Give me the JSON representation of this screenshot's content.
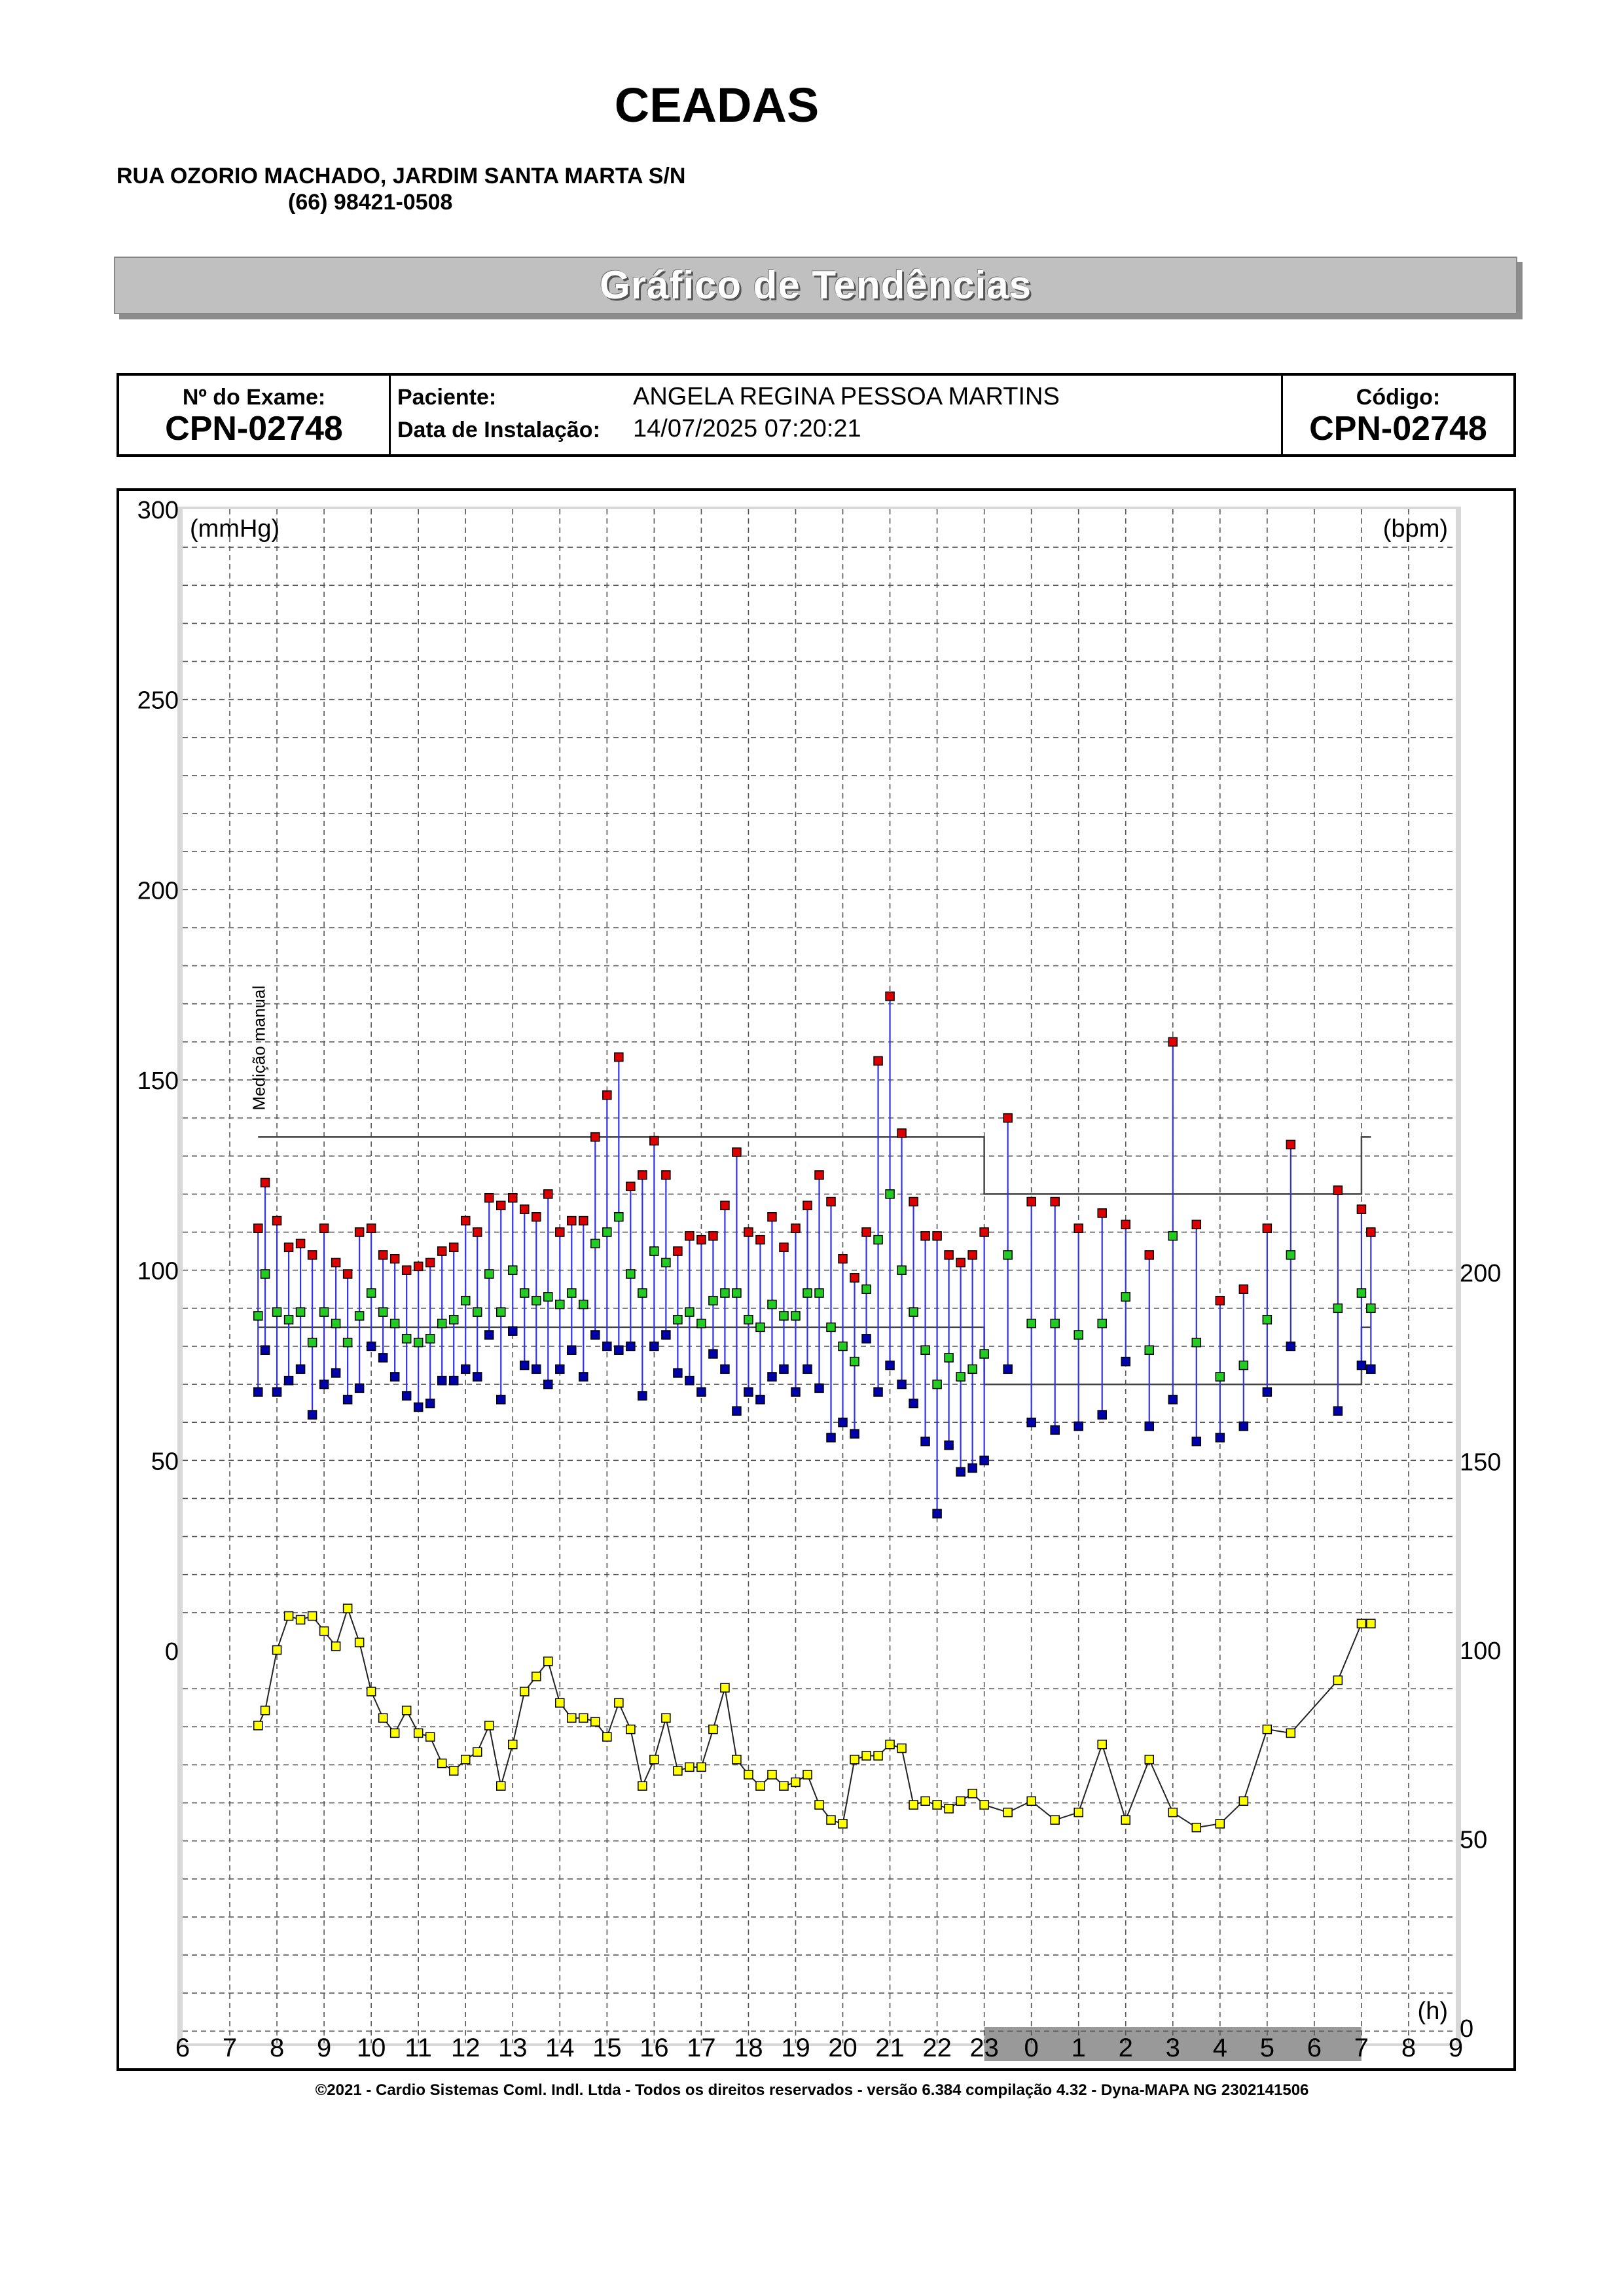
{
  "header": {
    "clinic_name": "CEADAS",
    "address": "RUA OZORIO MACHADO, JARDIM SANTA MARTA S/N",
    "phone": "(66) 98421-0508"
  },
  "report_title": "Gráfico de Tendências",
  "exam": {
    "exam_label": "Nº do Exame:",
    "exam_number": "CPN-02748",
    "patient_label": "Paciente:",
    "patient_name": "ANGELA REGINA PESSOA MARTINS",
    "install_label": "Data de Instalação:",
    "install_date": "14/07/2025 07:20:21",
    "code_label": "Código:",
    "code": "CPN-02748"
  },
  "footer": "©2021 - Cardio Sistemas Coml. Indl. Ltda - Todos os direitos reservados - versão 6.384 compilação 4.32 - Dyna-MAPA NG 2302141506",
  "chart_data": {
    "type": "scatter",
    "left_axis_label": "(mmHg)",
    "right_axis_label": "(bpm)",
    "x_axis_label": "(h)",
    "left_ticks": [
      0,
      50,
      100,
      150,
      200,
      250,
      300
    ],
    "right_ticks": [
      0,
      50,
      100,
      150,
      200
    ],
    "x_tick_labels": [
      "6",
      "7",
      "8",
      "9",
      "10",
      "11",
      "12",
      "13",
      "14",
      "15",
      "16",
      "17",
      "18",
      "19",
      "20",
      "21",
      "22",
      "23",
      "0",
      "1",
      "2",
      "3",
      "4",
      "5",
      "6",
      "7",
      "8",
      "9"
    ],
    "x_range_hours": [
      6,
      33
    ],
    "night_shade_hours": [
      23,
      31
    ],
    "annotation": "Medição manual",
    "annotation_time_h": 7.6,
    "colors": {
      "systolic": "#dd0000",
      "mean": "#22cc22",
      "diastolic": "#0000aa",
      "heart_rate": "#ffff00",
      "connector": "#3333dd",
      "limit_line": "#444444",
      "night_band": "#999999"
    },
    "limits": {
      "day_systolic": 135,
      "day_diastolic": 85,
      "night_systolic": 120,
      "night_diastolic": 70,
      "day_from_h": 7.6,
      "night_from_h": 23,
      "night_to_h": 31,
      "day2_to_h": 31.2
    },
    "bp_series": {
      "t": [
        7.6,
        7.75,
        8.0,
        8.25,
        8.5,
        8.75,
        9.0,
        9.25,
        9.5,
        9.75,
        10.0,
        10.25,
        10.5,
        10.75,
        11.0,
        11.25,
        11.5,
        11.75,
        12.0,
        12.25,
        12.5,
        12.75,
        13.0,
        13.25,
        13.5,
        13.75,
        14.0,
        14.25,
        14.5,
        14.75,
        15.0,
        15.25,
        15.5,
        15.75,
        16.0,
        16.25,
        16.5,
        16.75,
        17.0,
        17.25,
        17.5,
        17.75,
        18.0,
        18.25,
        18.5,
        18.75,
        19.0,
        19.25,
        19.5,
        19.75,
        20.0,
        20.25,
        20.5,
        20.75,
        21.0,
        21.25,
        21.5,
        21.75,
        22.0,
        22.25,
        22.5,
        22.75,
        23.0,
        23.5,
        24.0,
        24.5,
        25.0,
        25.5,
        26.0,
        26.5,
        27.0,
        27.5,
        28.0,
        28.5,
        29.0,
        29.5,
        30.5,
        31.0,
        31.2
      ],
      "systolic": [
        111,
        123,
        113,
        106,
        107,
        104,
        111,
        102,
        99,
        110,
        111,
        104,
        103,
        100,
        101,
        102,
        105,
        106,
        113,
        110,
        119,
        117,
        119,
        116,
        114,
        120,
        110,
        113,
        113,
        135,
        146,
        156,
        122,
        125,
        134,
        125,
        105,
        109,
        108,
        109,
        117,
        131,
        110,
        108,
        114,
        106,
        111,
        117,
        125,
        118,
        103,
        98,
        110,
        155,
        172,
        136,
        118,
        109,
        109,
        104,
        102,
        104,
        110,
        140,
        118,
        118,
        111,
        115,
        112,
        104,
        160,
        112,
        92,
        95,
        111,
        133,
        121,
        116,
        110
      ],
      "mean": [
        88,
        99,
        89,
        87,
        89,
        81,
        89,
        86,
        81,
        88,
        94,
        89,
        86,
        82,
        81,
        82,
        86,
        87,
        92,
        89,
        99,
        89,
        100,
        94,
        92,
        93,
        91,
        94,
        91,
        107,
        110,
        114,
        99,
        94,
        105,
        102,
        87,
        89,
        86,
        92,
        94,
        94,
        87,
        85,
        91,
        88,
        88,
        94,
        94,
        85,
        80,
        76,
        95,
        108,
        120,
        100,
        89,
        79,
        70,
        77,
        72,
        74,
        78,
        104,
        86,
        86,
        83,
        86,
        93,
        79,
        109,
        81,
        72,
        75,
        87,
        104,
        90,
        94,
        90
      ],
      "diastolic": [
        68,
        79,
        68,
        71,
        74,
        62,
        70,
        73,
        66,
        69,
        80,
        77,
        72,
        67,
        64,
        65,
        71,
        71,
        74,
        72,
        83,
        66,
        84,
        75,
        74,
        70,
        74,
        79,
        72,
        83,
        80,
        79,
        80,
        67,
        80,
        83,
        73,
        71,
        68,
        78,
        74,
        63,
        68,
        66,
        72,
        74,
        68,
        74,
        69,
        56,
        60,
        57,
        82,
        68,
        75,
        70,
        65,
        55,
        36,
        54,
        47,
        48,
        50,
        74,
        60,
        58,
        59,
        62,
        76,
        59,
        66,
        55,
        56,
        59,
        68,
        80,
        63,
        75,
        74
      ]
    },
    "heart_rate": {
      "t": [
        7.6,
        7.75,
        8.0,
        8.25,
        8.5,
        8.75,
        9.0,
        9.25,
        9.5,
        9.75,
        10.0,
        10.25,
        10.5,
        10.75,
        11.0,
        11.25,
        11.5,
        11.75,
        12.0,
        12.25,
        12.5,
        12.75,
        13.0,
        13.25,
        13.5,
        13.75,
        14.0,
        14.25,
        14.5,
        14.75,
        15.0,
        15.25,
        15.5,
        15.75,
        16.0,
        16.25,
        16.5,
        16.75,
        17.0,
        17.25,
        17.5,
        17.75,
        18.0,
        18.25,
        18.5,
        18.75,
        19.0,
        19.25,
        19.5,
        19.75,
        20.0,
        20.25,
        20.5,
        20.75,
        21.0,
        21.25,
        21.5,
        21.75,
        22.0,
        22.25,
        22.5,
        22.75,
        23.0,
        23.5,
        24.0,
        24.5,
        25.0,
        25.5,
        26.0,
        26.5,
        27.0,
        27.5,
        28.0,
        28.5,
        29.0,
        29.5,
        30.5,
        31.0,
        31.2
      ],
      "bpm": [
        80,
        84,
        100,
        109,
        108,
        109,
        105,
        101,
        111,
        102,
        89,
        82,
        78,
        84,
        78,
        77,
        70,
        68,
        71,
        73,
        80,
        64,
        75,
        89,
        93,
        97,
        86,
        82,
        82,
        81,
        77,
        86,
        79,
        64,
        71,
        82,
        68,
        69,
        69,
        79,
        90,
        71,
        67,
        64,
        67,
        64,
        65,
        67,
        59,
        55,
        54,
        71,
        72,
        72,
        75,
        74,
        59,
        60,
        59,
        58,
        60,
        62,
        59,
        57,
        60,
        55,
        57,
        75,
        55,
        71,
        57,
        53,
        54,
        60,
        79,
        78,
        92,
        107,
        107
      ]
    }
  }
}
